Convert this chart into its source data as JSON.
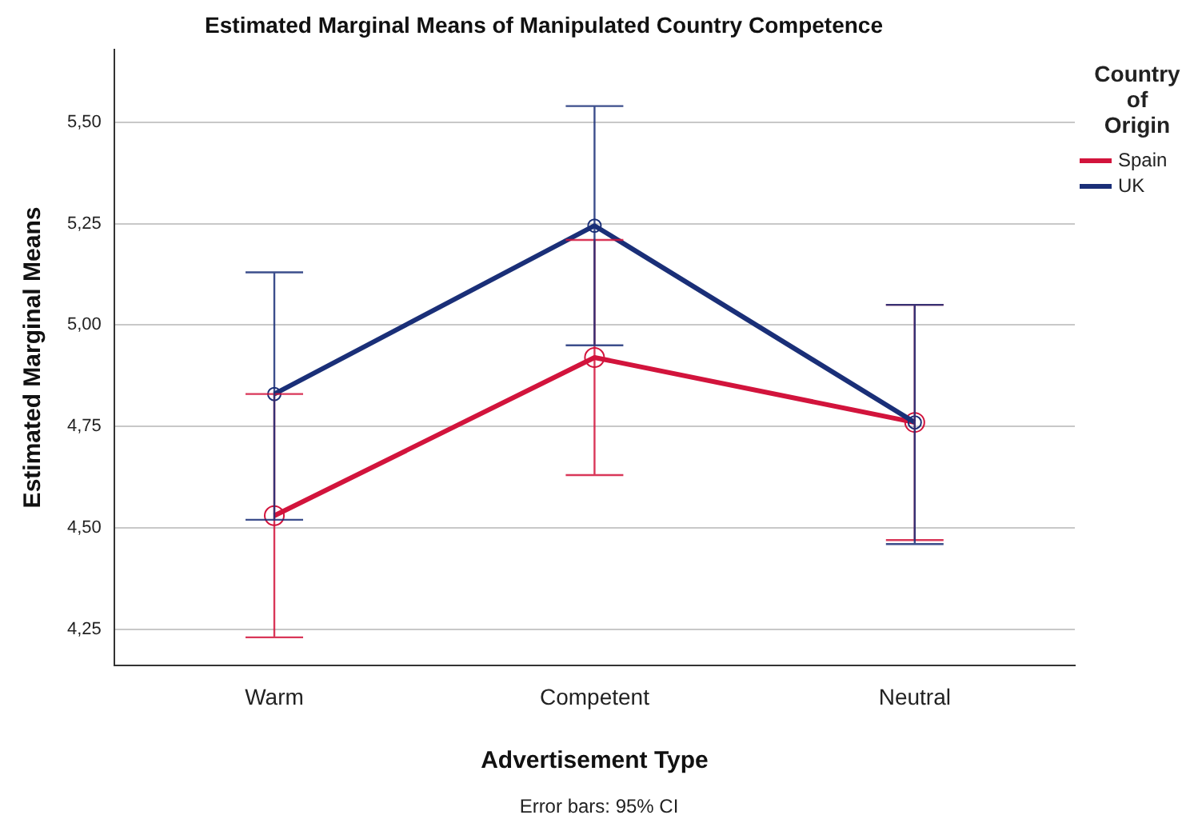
{
  "chart_data": {
    "type": "line",
    "title": "Estimated Marginal Means of Manipulated Country Competence",
    "xlabel": "Advertisement Type",
    "ylabel": "Estimated Marginal Means",
    "legend_title": "Country of Origin",
    "categories": [
      "Warm",
      "Competent",
      "Neutral"
    ],
    "series": [
      {
        "name": "Spain",
        "color": "#d2143c",
        "values": [
          4.53,
          4.92,
          4.76
        ],
        "errors": [
          [
            4.23,
            4.83
          ],
          [
            4.63,
            5.21
          ],
          [
            4.47,
            5.05
          ]
        ]
      },
      {
        "name": "UK",
        "color": "#1a2f78",
        "values": [
          4.83,
          5.245,
          4.76
        ],
        "errors": [
          [
            4.52,
            5.13
          ],
          [
            4.95,
            5.54
          ],
          [
            4.46,
            5.05
          ]
        ]
      }
    ],
    "ylim": [
      4.16,
      5.68
    ],
    "yticks": [
      {
        "value": 4.25,
        "label": "4,25"
      },
      {
        "value": 4.5,
        "label": "4,50"
      },
      {
        "value": 4.75,
        "label": "4,75"
      },
      {
        "value": 5,
        "label": "5,00"
      },
      {
        "value": 5.25,
        "label": "5,25"
      },
      {
        "value": 5.5,
        "label": "5,50"
      }
    ],
    "grid": "y",
    "legend": "top right",
    "marker": "circle",
    "line_style": "solid",
    "annotations": [
      "Error bars: 95% CI"
    ]
  }
}
